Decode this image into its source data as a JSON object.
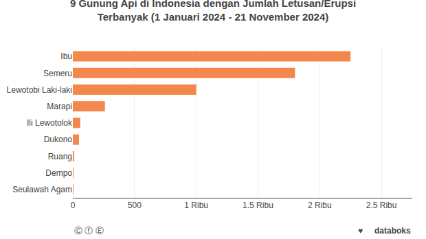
{
  "chart_data": {
    "type": "bar",
    "orientation": "horizontal",
    "title": "9 Gunung Api di Indonesia dengan Jumlah Letusan/Erupsi",
    "subtitle": "Terbanyak (1 Januari 2024 - 21 November 2024)",
    "categories": [
      "Seulawah Agam",
      "Dempo",
      "Ruang",
      "Dukono",
      "Ili Lewotolok",
      "Marapi",
      "Lewotobi Laki-laki",
      "Semeru",
      "Ibu"
    ],
    "values": [
      3,
      5,
      10,
      50,
      60,
      260,
      1000,
      1800,
      2250
    ],
    "color": "#F4874B",
    "xlim": [
      0,
      2750
    ],
    "xticks": [
      0,
      500,
      {
        "value": 1000,
        "label": "1 Ribu"
      },
      {
        "value": 1500,
        "label": "1.5 Ribu"
      },
      {
        "value": 2000,
        "label": "2 Ribu"
      },
      {
        "value": 2500,
        "label": "2.5 Ribu"
      }
    ],
    "grid": true,
    "annotations": [
      "Ⓒ ⓕ Ⓔ",
      "♥",
      "databoks"
    ]
  }
}
